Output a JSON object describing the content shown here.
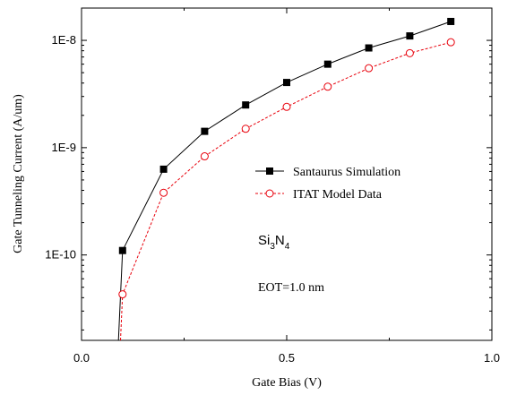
{
  "chart_data": {
    "type": "line",
    "title": "",
    "xlabel": "Gate Bias (V)",
    "ylabel": "Gate Tunneling Current (A/um)",
    "xlim": [
      0.0,
      1.0
    ],
    "ylim": [
      1.6e-11,
      2e-08
    ],
    "yscale": "log",
    "x_ticks": [
      0.0,
      0.5,
      1.0
    ],
    "x_tick_labels": [
      "0.0",
      "0.5",
      "1.0"
    ],
    "y_ticks": [
      1e-10,
      1e-09,
      1e-08
    ],
    "y_tick_labels": [
      "1E-10",
      "1E-9",
      "1E-8"
    ],
    "grid": false,
    "legend_position": "center-right",
    "series": [
      {
        "name": "Santaurus Simulation",
        "color": "#000000",
        "line_style": "solid",
        "marker": "filled-square",
        "x": [
          0.09,
          0.1,
          0.2,
          0.3,
          0.4,
          0.5,
          0.6,
          0.7,
          0.8,
          0.9
        ],
        "y": [
          1.6e-11,
          1.1e-10,
          6.3e-10,
          1.42e-09,
          2.5e-09,
          4.05e-09,
          6e-09,
          8.5e-09,
          1.1e-08,
          1.5e-08
        ],
        "markers_on": [
          false,
          true,
          true,
          true,
          true,
          true,
          true,
          true,
          true,
          true
        ]
      },
      {
        "name": "ITAT Model Data",
        "color": "#e8000b",
        "line_style": "dashed",
        "marker": "open-circle",
        "x": [
          0.095,
          0.1,
          0.2,
          0.3,
          0.4,
          0.5,
          0.6,
          0.7,
          0.8,
          0.9
        ],
        "y": [
          1.6e-11,
          4.3e-11,
          3.8e-10,
          8.3e-10,
          1.5e-09,
          2.4e-09,
          3.7e-09,
          5.5e-09,
          7.6e-09,
          9.6e-09
        ],
        "markers_on": [
          false,
          true,
          true,
          true,
          true,
          true,
          true,
          true,
          true,
          true
        ]
      }
    ],
    "annotations": [
      {
        "id": "material",
        "base": "Si",
        "sub1": "3",
        "mid": "N",
        "sub2": "4"
      },
      {
        "id": "eot",
        "text": "EOT=1.0 nm"
      }
    ]
  }
}
